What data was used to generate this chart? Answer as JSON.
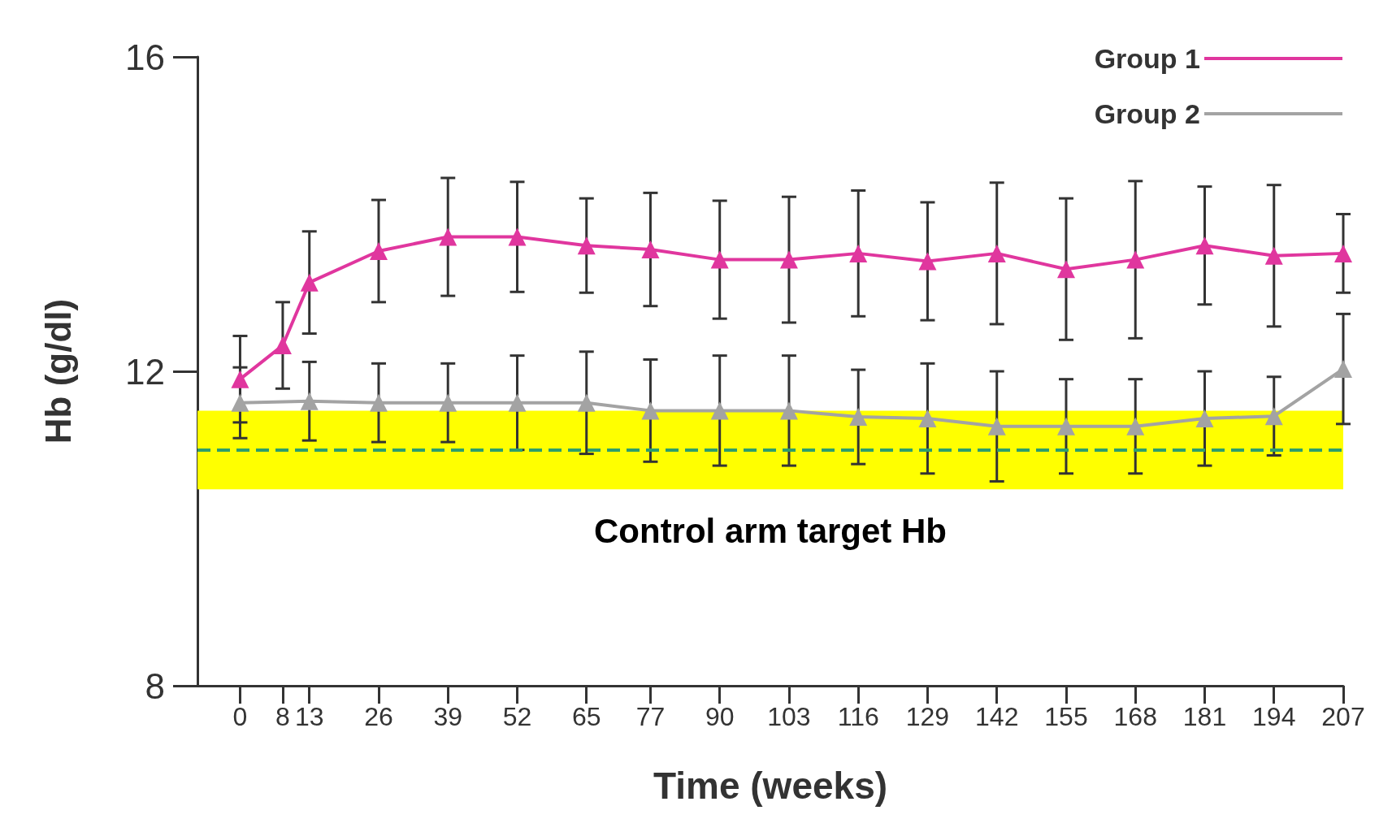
{
  "chart_data": {
    "type": "line",
    "xlabel": "Time (weeks)",
    "ylabel": "Hb (g/dl)",
    "x": [
      0,
      8,
      13,
      26,
      39,
      52,
      65,
      77,
      90,
      103,
      116,
      129,
      142,
      155,
      168,
      181,
      194,
      207
    ],
    "xlim": [
      -8,
      207
    ],
    "xticks": [
      0,
      8,
      13,
      26,
      39,
      52,
      65,
      77,
      90,
      103,
      116,
      129,
      142,
      155,
      168,
      181,
      194,
      207
    ],
    "ylim": [
      8,
      16
    ],
    "yticks": [
      8,
      12,
      16
    ],
    "grid": false,
    "legend": "top right",
    "marker": "triangle",
    "line_style": "solid",
    "series": [
      {
        "name": "Group 1",
        "color": "#e0369e",
        "values": [
          11.9,
          12.33,
          13.13,
          13.53,
          13.71,
          13.71,
          13.6,
          13.55,
          13.42,
          13.42,
          13.5,
          13.4,
          13.5,
          13.3,
          13.42,
          13.6,
          13.47,
          13.5
        ],
        "errors": [
          0.55,
          0.55,
          0.65,
          0.65,
          0.75,
          0.7,
          0.6,
          0.72,
          0.75,
          0.8,
          0.8,
          0.75,
          0.9,
          0.9,
          1.0,
          0.75,
          0.9,
          0.5
        ]
      },
      {
        "name": "Group 2",
        "color": "#a3a3a3",
        "values": [
          11.6,
          null,
          11.62,
          11.6,
          11.6,
          11.6,
          11.6,
          11.5,
          11.5,
          11.5,
          11.42,
          11.4,
          11.3,
          11.3,
          11.3,
          11.4,
          11.43,
          12.03
        ],
        "errors": [
          0.45,
          null,
          0.5,
          0.5,
          0.5,
          0.6,
          0.65,
          0.65,
          0.7,
          0.7,
          0.6,
          0.7,
          0.7,
          0.6,
          0.6,
          0.6,
          0.5,
          0.7
        ]
      }
    ],
    "bands": [
      {
        "axis": "y",
        "from": 10.5,
        "to": 11.5,
        "label": "Control arm target Hb",
        "color": "#ffff00"
      }
    ],
    "ref_lines": [
      {
        "axis": "y",
        "value": 11,
        "color": "#2e9e6a",
        "line_style": "dashed"
      }
    ]
  }
}
